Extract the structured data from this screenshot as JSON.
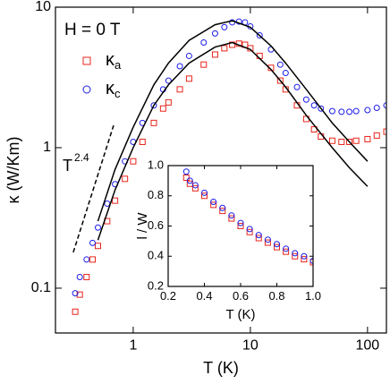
{
  "chart_data": [
    {
      "type": "scatter",
      "xscale": "log",
      "yscale": "log",
      "xlabel": "T (K)",
      "ylabel": "κ (W/Km)",
      "xlim": [
        0.217,
        145
      ],
      "ylim": [
        0.048,
        10
      ],
      "xticks": [
        1,
        10,
        100
      ],
      "yticks": [
        0.1,
        1,
        10
      ],
      "legend_title": "H = 0 T",
      "annotation": "T",
      "annotation_exponent": "2.4",
      "series": [
        {
          "name": "κa",
          "color": "#e8241c",
          "marker": "square",
          "x": [
            0.32,
            0.35,
            0.4,
            0.45,
            0.5,
            0.6,
            0.7,
            0.85,
            1,
            1.2,
            1.5,
            1.8,
            2,
            2.5,
            3,
            4,
            5,
            6,
            7,
            8,
            9,
            10,
            12,
            15,
            18,
            20,
            25,
            30,
            35,
            40,
            50,
            60,
            70,
            80,
            100,
            120,
            145
          ],
          "values": [
            0.068,
            0.09,
            0.12,
            0.16,
            0.2,
            0.3,
            0.42,
            0.6,
            0.8,
            1.1,
            1.5,
            1.9,
            2.1,
            2.6,
            3.1,
            3.9,
            4.6,
            5.1,
            5.4,
            5.5,
            5.4,
            5.1,
            4.5,
            3.7,
            3.0,
            2.6,
            2.0,
            1.6,
            1.35,
            1.2,
            1.12,
            1.1,
            1.1,
            1.12,
            1.15,
            1.22,
            1.3
          ]
        },
        {
          "name": "κc",
          "color": "#1c1ce8",
          "marker": "circle",
          "x": [
            0.32,
            0.35,
            0.4,
            0.45,
            0.5,
            0.6,
            0.7,
            0.85,
            1,
            1.2,
            1.5,
            1.8,
            2,
            2.5,
            3,
            4,
            5,
            6,
            7,
            8,
            9,
            10,
            12,
            15,
            18,
            20,
            25,
            30,
            35,
            40,
            50,
            60,
            70,
            80,
            100,
            120,
            145
          ],
          "values": [
            0.092,
            0.12,
            0.16,
            0.21,
            0.27,
            0.4,
            0.55,
            0.8,
            1.1,
            1.5,
            2.0,
            2.6,
            3.0,
            3.8,
            4.5,
            5.6,
            6.5,
            7.2,
            7.8,
            7.9,
            7.8,
            7.3,
            6.3,
            5.0,
            3.9,
            3.4,
            2.7,
            2.2,
            2.0,
            1.9,
            1.82,
            1.8,
            1.8,
            1.82,
            1.85,
            1.92,
            2.0
          ]
        },
        {
          "color": "#000000",
          "marker": "line",
          "x": [
            0.5,
            0.7,
            1,
            1.5,
            2,
            3,
            5,
            7,
            10,
            15,
            20,
            30,
            50,
            70,
            100
          ],
          "values": [
            0.3,
            0.7,
            1.4,
            2.8,
            4.0,
            5.8,
            7.5,
            8.0,
            7.2,
            5.3,
            4.0,
            2.6,
            1.5,
            1.1,
            0.8
          ]
        },
        {
          "color": "#000000",
          "marker": "line",
          "x": [
            0.5,
            0.7,
            1,
            1.5,
            2,
            3,
            5,
            7,
            10,
            15,
            20,
            30,
            50,
            70,
            100
          ],
          "values": [
            0.22,
            0.5,
            1.0,
            2.0,
            2.8,
            4.0,
            5.2,
            5.6,
            5.0,
            3.6,
            2.7,
            1.7,
            1.0,
            0.72,
            0.53
          ]
        },
        {
          "color": "#000000",
          "marker": "dashed",
          "x": [
            0.308,
            0.68
          ],
          "values": [
            0.18,
            1.44
          ]
        }
      ]
    },
    {
      "type": "scatter",
      "xlabel": "T (K)",
      "ylabel": "l / W",
      "xlim": [
        0.2,
        1.0
      ],
      "ylim": [
        0.2,
        1.0
      ],
      "xticks": [
        0.2,
        0.4,
        0.6,
        0.8,
        {
          "value": 1,
          "label": "1.0"
        }
      ],
      "yticks": [
        0.2,
        0.4,
        0.6,
        0.8,
        {
          "value": 1,
          "label": "1.0"
        }
      ],
      "series": [
        {
          "color": "#e8241c",
          "marker": "square",
          "x": [
            0.3,
            0.32,
            0.35,
            0.4,
            0.45,
            0.5,
            0.55,
            0.6,
            0.65,
            0.7,
            0.75,
            0.8,
            0.85,
            0.9,
            0.95,
            1.0
          ],
          "values": [
            0.92,
            0.88,
            0.85,
            0.8,
            0.74,
            0.7,
            0.65,
            0.6,
            0.56,
            0.52,
            0.49,
            0.46,
            0.43,
            0.4,
            0.38,
            0.36
          ]
        },
        {
          "color": "#1c1ce8",
          "marker": "circle",
          "x": [
            0.3,
            0.32,
            0.35,
            0.4,
            0.45,
            0.5,
            0.55,
            0.6,
            0.65,
            0.7,
            0.75,
            0.8,
            0.85,
            0.9,
            0.95,
            1.0
          ],
          "values": [
            0.96,
            0.9,
            0.87,
            0.82,
            0.76,
            0.72,
            0.67,
            0.62,
            0.58,
            0.54,
            0.51,
            0.48,
            0.45,
            0.42,
            0.4,
            0.37
          ]
        }
      ]
    }
  ]
}
